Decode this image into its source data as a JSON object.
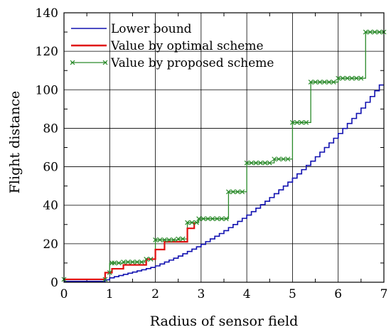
{
  "chart_data": {
    "type": "line",
    "title": "",
    "xlabel": "Radius of sensor field",
    "ylabel": "Flight distance",
    "xlim": [
      0,
      7
    ],
    "ylim": [
      0,
      140
    ],
    "xticks": [
      "0",
      "1",
      "2",
      "3",
      "4",
      "5",
      "6",
      "7"
    ],
    "yticks": [
      "0",
      "20",
      "40",
      "60",
      "80",
      "100",
      "120",
      "140"
    ],
    "grid": true,
    "legend_position": "top-left",
    "series": [
      {
        "name": "Lower bound",
        "color": "#1010b0",
        "marker": "none",
        "step_resolution": 0.1,
        "x": [
          0,
          0.9,
          1,
          1.5,
          2,
          2.5,
          3,
          3.5,
          4,
          4.5,
          5,
          5.5,
          6,
          6.5,
          7
        ],
        "y": [
          0.5,
          0.5,
          2,
          5,
          8,
          13,
          19,
          26,
          34,
          43,
          53,
          64,
          76,
          89,
          104
        ]
      },
      {
        "name": "Value by optimal scheme",
        "color": "#e01010",
        "marker": "none",
        "x": [
          0,
          0.9,
          0.9,
          1.05,
          1.05,
          1.3,
          1.3,
          1.8,
          1.8,
          2.0,
          2.0,
          2.2,
          2.2,
          2.7,
          2.7,
          2.85,
          2.85
        ],
        "y": [
          1.5,
          1.5,
          5,
          5,
          7,
          7,
          9,
          9,
          12,
          12,
          17,
          17,
          21,
          21,
          28,
          28,
          31
        ]
      },
      {
        "name": "Value by proposed scheme",
        "color": "#2a8a2a",
        "marker": "x",
        "x": [
          0,
          0.9,
          0.9,
          1.0,
          1.0,
          1.3,
          1.3,
          1.8,
          1.8,
          2.0,
          2.0,
          2.5,
          2.5,
          2.7,
          2.7,
          2.95,
          2.95,
          3.6,
          3.6,
          4.0,
          4.0,
          4.6,
          4.6,
          5.0,
          5.0,
          5.4,
          5.4,
          6.0,
          6.0,
          6.6,
          6.6,
          7.0
        ],
        "y": [
          1.5,
          1.5,
          5,
          5,
          10,
          10,
          10.5,
          10.5,
          12,
          12,
          22,
          22,
          22.5,
          22.5,
          31,
          31,
          33,
          33,
          47,
          47,
          62,
          62,
          64,
          64,
          83,
          83,
          104,
          104,
          106,
          106,
          130,
          130
        ],
        "marker_x": [
          0,
          0.9,
          1.0,
          1.05,
          1.1,
          1.2,
          1.3,
          1.4,
          1.5,
          1.6,
          1.7,
          1.8,
          1.9,
          2.0,
          2.1,
          2.2,
          2.3,
          2.4,
          2.5,
          2.6,
          2.7,
          2.8,
          2.9,
          2.95,
          3.05,
          3.15,
          3.25,
          3.35,
          3.45,
          3.55,
          3.6,
          3.7,
          3.8,
          3.9,
          4.0,
          4.1,
          4.2,
          4.3,
          4.4,
          4.5,
          4.6,
          4.7,
          4.8,
          4.9,
          5.0,
          5.1,
          5.2,
          5.3,
          5.4,
          5.5,
          5.6,
          5.7,
          5.8,
          5.9,
          6.0,
          6.1,
          6.2,
          6.3,
          6.4,
          6.5,
          6.6,
          6.7,
          6.8,
          6.9,
          7.0
        ],
        "marker_y": [
          1.5,
          1.5,
          5,
          10,
          10,
          10,
          10.5,
          10.5,
          10.5,
          10.5,
          10.5,
          12,
          12,
          22,
          22,
          22,
          22,
          22,
          22.5,
          22.5,
          31,
          31,
          31,
          33,
          33,
          33,
          33,
          33,
          33,
          33,
          47,
          47,
          47,
          47,
          62,
          62,
          62,
          62,
          62,
          62,
          64,
          64,
          64,
          64,
          83,
          83,
          83,
          83,
          104,
          104,
          104,
          104,
          104,
          104,
          106,
          106,
          106,
          106,
          106,
          106,
          130,
          130,
          130,
          130,
          130
        ]
      }
    ]
  }
}
